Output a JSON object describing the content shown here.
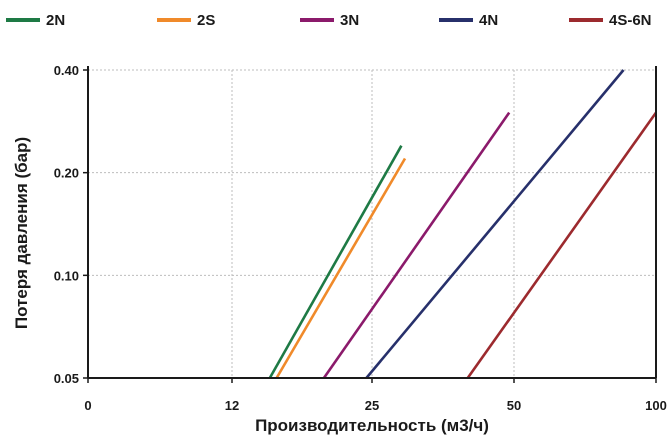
{
  "chart_data": {
    "type": "line",
    "title": "",
    "xlabel": "Производительность (м3/ч)",
    "ylabel": "Потеря давления (бар)",
    "x_tick_labels": [
      "0",
      "12",
      "25",
      "50",
      "100"
    ],
    "y_tick_labels": [
      "0.05",
      "0.10",
      "0.20",
      "0.40"
    ],
    "x_scale": "log (0 at left edge)",
    "y_scale": "log",
    "xlim": [
      0,
      100
    ],
    "ylim": [
      0.05,
      0.4
    ],
    "grid": true,
    "legend_position": "top",
    "series": [
      {
        "name": "2N",
        "color": "#1e7a45",
        "points": [
          [
            14.5,
            0.05
          ],
          [
            28.0,
            0.24
          ]
        ]
      },
      {
        "name": "2S",
        "color": "#f08a2a",
        "points": [
          [
            15.0,
            0.05
          ],
          [
            28.5,
            0.22
          ]
        ]
      },
      {
        "name": "3N",
        "color": "#8b1a6b",
        "points": [
          [
            19.0,
            0.05
          ],
          [
            48.0,
            0.3
          ]
        ]
      },
      {
        "name": "4N",
        "color": "#27306b",
        "points": [
          [
            23.5,
            0.05
          ],
          [
            85.0,
            0.4
          ]
        ]
      },
      {
        "name": "4S-6N",
        "color": "#9c2a2e",
        "points": [
          [
            39.0,
            0.05
          ],
          [
            100.0,
            0.3
          ]
        ]
      }
    ]
  }
}
